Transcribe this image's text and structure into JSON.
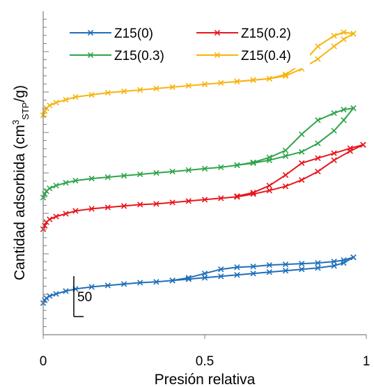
{
  "chart_data": {
    "type": "line",
    "title": "",
    "xlabel": "Presión relativa",
    "ylabel": "Cantidad adsorbida (cm",
    "ylabel_sup": "3",
    "ylabel_sub": "STP",
    "ylabel_end": "/g)",
    "xlim": [
      0,
      1
    ],
    "x_ticks": [
      "0",
      "0.5",
      "1"
    ],
    "x_tick_values": [
      0,
      0.5,
      1
    ],
    "y_ticks_labeled": false,
    "grid": false,
    "legend_placement": "top",
    "scale_bar_label": "50",
    "scale_bar_value": 50,
    "ylim": [
      0,
      460
    ],
    "series": [
      {
        "name": "Z15(0)",
        "color": "#1f6fb9",
        "adsorption": [
          [
            0.0,
            45
          ],
          [
            0.005,
            49
          ],
          [
            0.01,
            52
          ],
          [
            0.02,
            55
          ],
          [
            0.04,
            58
          ],
          [
            0.07,
            62
          ],
          [
            0.1,
            65
          ],
          [
            0.15,
            68
          ],
          [
            0.2,
            70
          ],
          [
            0.25,
            72
          ],
          [
            0.3,
            74
          ],
          [
            0.35,
            75
          ],
          [
            0.4,
            77
          ],
          [
            0.45,
            79
          ],
          [
            0.5,
            81
          ],
          [
            0.55,
            83
          ],
          [
            0.6,
            85
          ],
          [
            0.65,
            87
          ],
          [
            0.7,
            89
          ],
          [
            0.75,
            91
          ],
          [
            0.8,
            93
          ],
          [
            0.85,
            95
          ],
          [
            0.9,
            98
          ],
          [
            0.93,
            102
          ],
          [
            0.96,
            110
          ]
        ],
        "desorption": [
          [
            0.96,
            110
          ],
          [
            0.93,
            106
          ],
          [
            0.9,
            104
          ],
          [
            0.85,
            102
          ],
          [
            0.8,
            101
          ],
          [
            0.75,
            100
          ],
          [
            0.7,
            99
          ],
          [
            0.65,
            97
          ],
          [
            0.6,
            96
          ],
          [
            0.55,
            93
          ],
          [
            0.5,
            87
          ],
          [
            0.45,
            81
          ],
          [
            0.4,
            77
          ]
        ]
      },
      {
        "name": "Z15(0.2)",
        "color": "#e8161c",
        "adsorption": [
          [
            0.0,
            150
          ],
          [
            0.005,
            155
          ],
          [
            0.01,
            160
          ],
          [
            0.02,
            164
          ],
          [
            0.04,
            168
          ],
          [
            0.07,
            172
          ],
          [
            0.1,
            176
          ],
          [
            0.15,
            179
          ],
          [
            0.2,
            181
          ],
          [
            0.25,
            183
          ],
          [
            0.3,
            185
          ],
          [
            0.35,
            186
          ],
          [
            0.4,
            188
          ],
          [
            0.45,
            190
          ],
          [
            0.5,
            192
          ],
          [
            0.55,
            194
          ],
          [
            0.6,
            196
          ],
          [
            0.65,
            200
          ],
          [
            0.7,
            205
          ],
          [
            0.75,
            211
          ],
          [
            0.8,
            220
          ],
          [
            0.85,
            232
          ],
          [
            0.9,
            248
          ],
          [
            0.95,
            261
          ],
          [
            0.99,
            270
          ]
        ],
        "desorption": [
          [
            0.99,
            270
          ],
          [
            0.95,
            265
          ],
          [
            0.9,
            258
          ],
          [
            0.85,
            251
          ],
          [
            0.8,
            244
          ],
          [
            0.75,
            227
          ],
          [
            0.7,
            212
          ],
          [
            0.65,
            202
          ],
          [
            0.6,
            197
          ]
        ]
      },
      {
        "name": "Z15(0.3)",
        "color": "#2ea44a",
        "adsorption": [
          [
            0.0,
            195
          ],
          [
            0.005,
            200
          ],
          [
            0.01,
            204
          ],
          [
            0.02,
            208
          ],
          [
            0.04,
            212
          ],
          [
            0.07,
            216
          ],
          [
            0.1,
            219
          ],
          [
            0.15,
            222
          ],
          [
            0.2,
            224
          ],
          [
            0.25,
            226
          ],
          [
            0.3,
            228
          ],
          [
            0.35,
            230
          ],
          [
            0.4,
            232
          ],
          [
            0.45,
            234
          ],
          [
            0.5,
            236
          ],
          [
            0.55,
            238
          ],
          [
            0.6,
            241
          ],
          [
            0.65,
            244
          ],
          [
            0.7,
            248
          ],
          [
            0.75,
            254
          ],
          [
            0.8,
            260
          ],
          [
            0.85,
            272
          ],
          [
            0.9,
            290
          ],
          [
            0.93,
            305
          ],
          [
            0.96,
            322
          ]
        ],
        "desorption": [
          [
            0.96,
            322
          ],
          [
            0.93,
            320
          ],
          [
            0.9,
            315
          ],
          [
            0.85,
            305
          ],
          [
            0.8,
            285
          ],
          [
            0.75,
            262
          ],
          [
            0.7,
            252
          ],
          [
            0.65,
            245
          ],
          [
            0.6,
            241
          ]
        ]
      },
      {
        "name": "Z15(0.4)",
        "color": "#f6b40e",
        "adsorption": [
          [
            0.0,
            312
          ],
          [
            0.005,
            318
          ],
          [
            0.01,
            322
          ],
          [
            0.02,
            326
          ],
          [
            0.04,
            330
          ],
          [
            0.07,
            334
          ],
          [
            0.1,
            338
          ],
          [
            0.15,
            341
          ],
          [
            0.2,
            344
          ],
          [
            0.25,
            346
          ],
          [
            0.3,
            348
          ],
          [
            0.35,
            350
          ],
          [
            0.4,
            352
          ],
          [
            0.45,
            354
          ],
          [
            0.5,
            356
          ],
          [
            0.55,
            358
          ],
          [
            0.6,
            360
          ],
          [
            0.65,
            362
          ],
          [
            0.7,
            364
          ],
          [
            0.75,
            368
          ],
          [
            0.8,
            378
          ],
          [
            0.85,
            392
          ],
          [
            0.9,
            410
          ],
          [
            0.93,
            420
          ],
          [
            0.96,
            428
          ]
        ],
        "desorption": [
          [
            0.96,
            428
          ],
          [
            0.93,
            430
          ],
          [
            0.9,
            425
          ],
          [
            0.85,
            410
          ],
          [
            0.8,
            385
          ],
          [
            0.75,
            370
          ],
          [
            0.7,
            364
          ],
          [
            0.65,
            362
          ],
          [
            0.6,
            360
          ]
        ]
      }
    ]
  }
}
